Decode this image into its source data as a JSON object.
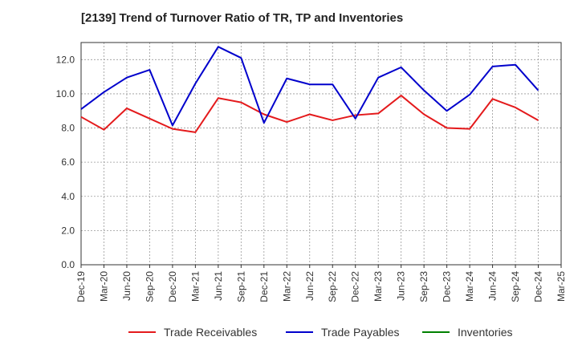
{
  "chart_data": {
    "type": "line",
    "title": "[2139]  Trend of Turnover Ratio of TR, TP and Inventories",
    "xlabel": "",
    "ylabel": "",
    "ylim": [
      0,
      13
    ],
    "yticks": [
      "0.0",
      "2.0",
      "4.0",
      "6.0",
      "8.0",
      "10.0",
      "12.0"
    ],
    "categories": [
      "Dec-19",
      "Mar-20",
      "Jun-20",
      "Sep-20",
      "Dec-20",
      "Mar-21",
      "Jun-21",
      "Sep-21",
      "Dec-21",
      "Mar-22",
      "Jun-22",
      "Sep-22",
      "Dec-22",
      "Mar-23",
      "Jun-23",
      "Sep-23",
      "Dec-23",
      "Mar-24",
      "Jun-24",
      "Sep-24",
      "Dec-24",
      "Mar-25"
    ],
    "grid": true,
    "legend_position": "bottom",
    "series": [
      {
        "name": "Trade Receivables",
        "color": "#e41a1c",
        "values": [
          8.65,
          7.9,
          9.15,
          8.55,
          7.95,
          7.75,
          9.75,
          9.5,
          8.8,
          8.35,
          8.8,
          8.45,
          8.75,
          8.85,
          9.9,
          8.8,
          8.0,
          7.95,
          9.7,
          9.2,
          8.45,
          null
        ]
      },
      {
        "name": "Trade Payables",
        "color": "#0000cc",
        "values": [
          9.1,
          10.1,
          10.95,
          11.4,
          8.15,
          10.6,
          12.75,
          12.1,
          8.3,
          10.9,
          10.55,
          10.55,
          8.55,
          10.95,
          11.55,
          10.2,
          9.0,
          9.95,
          11.6,
          11.7,
          10.2,
          null
        ]
      },
      {
        "name": "Inventories",
        "color": "#008000",
        "values": [
          null,
          null,
          null,
          null,
          null,
          null,
          null,
          null,
          null,
          null,
          null,
          null,
          null,
          null,
          null,
          null,
          null,
          null,
          null,
          null,
          null,
          null
        ]
      }
    ]
  }
}
